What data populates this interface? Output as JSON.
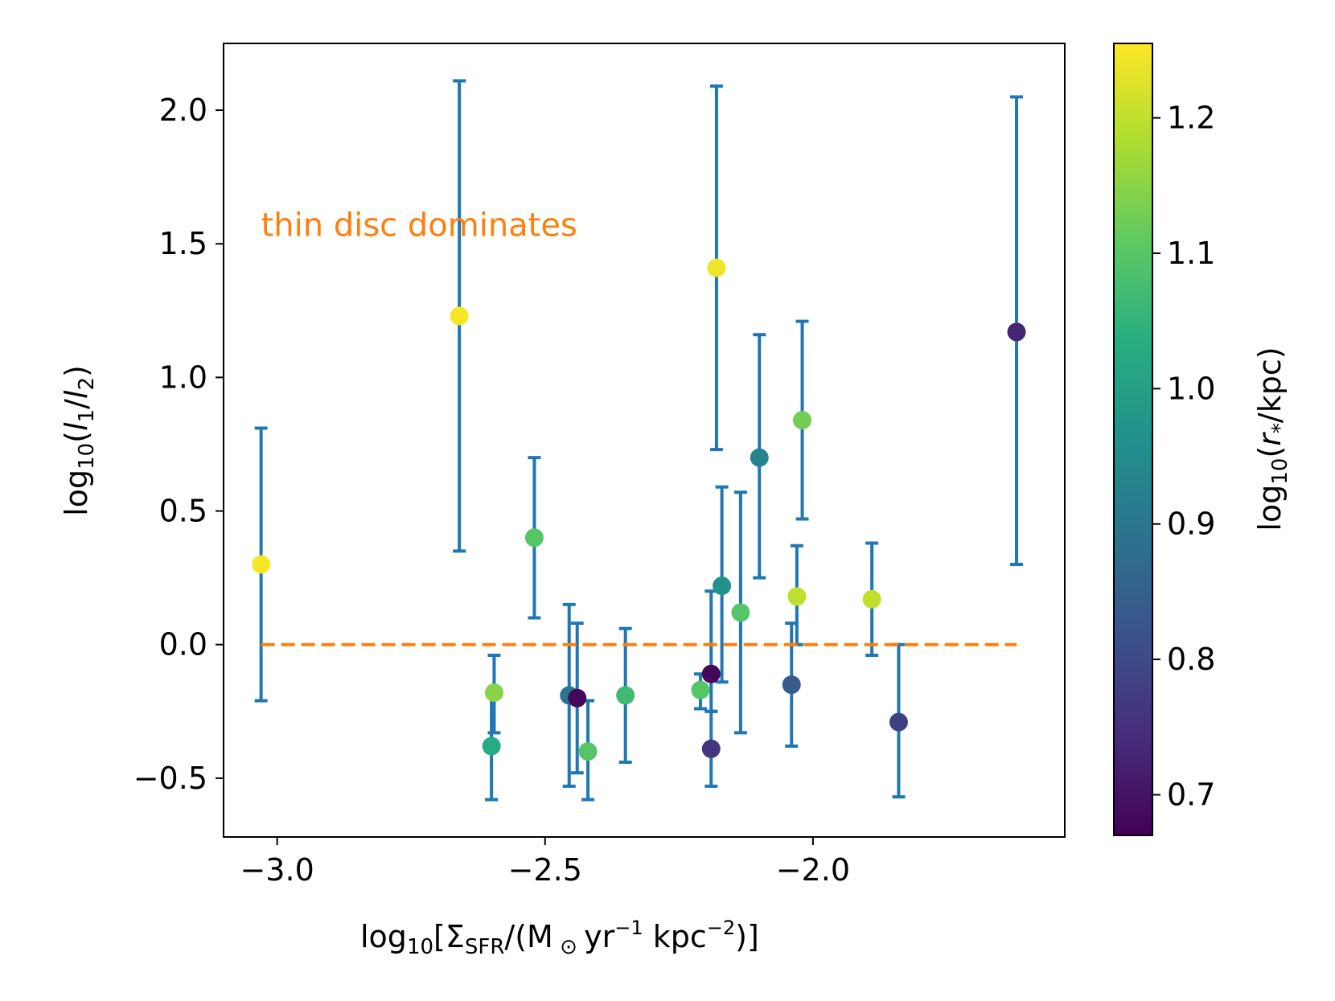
{
  "chart_data": {
    "type": "scatter",
    "title": "",
    "xlabel": "log10[ΣSFR/(M⊙ yr−1 kpc−2)]",
    "ylabel": "log10(l1/l2)",
    "xlim": [
      -3.1,
      -1.53
    ],
    "ylim": [
      -0.72,
      2.25
    ],
    "x_ticks": [
      -3.0,
      -2.5,
      -2.0
    ],
    "x_tick_labels": [
      "−3.0",
      "−2.5",
      "−2.0"
    ],
    "y_ticks": [
      -0.5,
      0.0,
      0.5,
      1.0,
      1.5,
      2.0
    ],
    "y_tick_labels": [
      "−0.5",
      "0.0",
      "0.5",
      "1.0",
      "1.5",
      "2.0"
    ],
    "errorbar_color": "#1f77b4",
    "reference_line": {
      "y": 0.0,
      "x_range": [
        -3.03,
        -1.62
      ],
      "style": "dashed",
      "color": "#ff7f0e"
    },
    "annotation": {
      "text": "thin disc dominates",
      "x": -3.0,
      "y": 1.53,
      "color": "#ff7f0e"
    },
    "colorbar": {
      "label": "log10(r*/kpc)",
      "range": [
        0.67,
        1.255
      ],
      "ticks": [
        0.7,
        0.8,
        0.9,
        1.0,
        1.1,
        1.2
      ],
      "tick_labels": [
        "0.7",
        "0.8",
        "0.9",
        "1.0",
        "1.1",
        "1.2"
      ],
      "colormap": "viridis"
    },
    "points": [
      {
        "x": -3.03,
        "y": 0.3,
        "err_low": -0.21,
        "err_high": 0.81,
        "c": 1.25
      },
      {
        "x": -2.66,
        "y": 1.23,
        "err_low": 0.35,
        "err_high": 2.11,
        "c": 1.25
      },
      {
        "x": -2.52,
        "y": 0.4,
        "err_low": 0.1,
        "err_high": 0.7,
        "c": 1.1
      },
      {
        "x": -2.595,
        "y": -0.18,
        "err_low": -0.33,
        "err_high": -0.04,
        "c": 1.15
      },
      {
        "x": -2.6,
        "y": -0.38,
        "err_low": -0.58,
        "err_high": -0.18,
        "c": 1.03
      },
      {
        "x": -2.455,
        "y": -0.19,
        "err_low": -0.53,
        "err_high": 0.15,
        "c": 0.9
      },
      {
        "x": -2.44,
        "y": -0.2,
        "err_low": -0.48,
        "err_high": 0.08,
        "c": 0.68
      },
      {
        "x": -2.42,
        "y": -0.4,
        "err_low": -0.58,
        "err_high": -0.21,
        "c": 1.1
      },
      {
        "x": -2.35,
        "y": -0.19,
        "err_low": -0.44,
        "err_high": 0.06,
        "c": 1.07
      },
      {
        "x": -2.21,
        "y": -0.17,
        "err_low": -0.24,
        "err_high": -0.11,
        "c": 1.1
      },
      {
        "x": -2.19,
        "y": -0.11,
        "err_low": -0.25,
        "err_high": 0.2,
        "c": 0.68
      },
      {
        "x": -2.19,
        "y": -0.39,
        "err_low": -0.53,
        "err_high": -0.25,
        "c": 0.76
      },
      {
        "x": -2.18,
        "y": 1.41,
        "err_low": 0.73,
        "err_high": 2.09,
        "c": 1.24
      },
      {
        "x": -2.17,
        "y": 0.22,
        "err_low": -0.14,
        "err_high": 0.59,
        "c": 0.97
      },
      {
        "x": -2.135,
        "y": 0.12,
        "err_low": -0.33,
        "err_high": 0.57,
        "c": 1.1
      },
      {
        "x": -2.1,
        "y": 0.7,
        "err_low": 0.25,
        "err_high": 1.16,
        "c": 0.93
      },
      {
        "x": -2.04,
        "y": -0.15,
        "err_low": -0.38,
        "err_high": 0.08,
        "c": 0.84
      },
      {
        "x": -2.03,
        "y": 0.18,
        "err_low": 0.0,
        "err_high": 0.37,
        "c": 1.2
      },
      {
        "x": -2.02,
        "y": 0.84,
        "err_low": 0.47,
        "err_high": 1.21,
        "c": 1.13
      },
      {
        "x": -1.89,
        "y": 0.17,
        "err_low": -0.04,
        "err_high": 0.38,
        "c": 1.2
      },
      {
        "x": -1.84,
        "y": -0.29,
        "err_low": -0.57,
        "err_high": 0.0,
        "c": 0.78
      },
      {
        "x": -1.62,
        "y": 1.17,
        "err_low": 0.3,
        "err_high": 2.05,
        "c": 0.73
      }
    ]
  }
}
